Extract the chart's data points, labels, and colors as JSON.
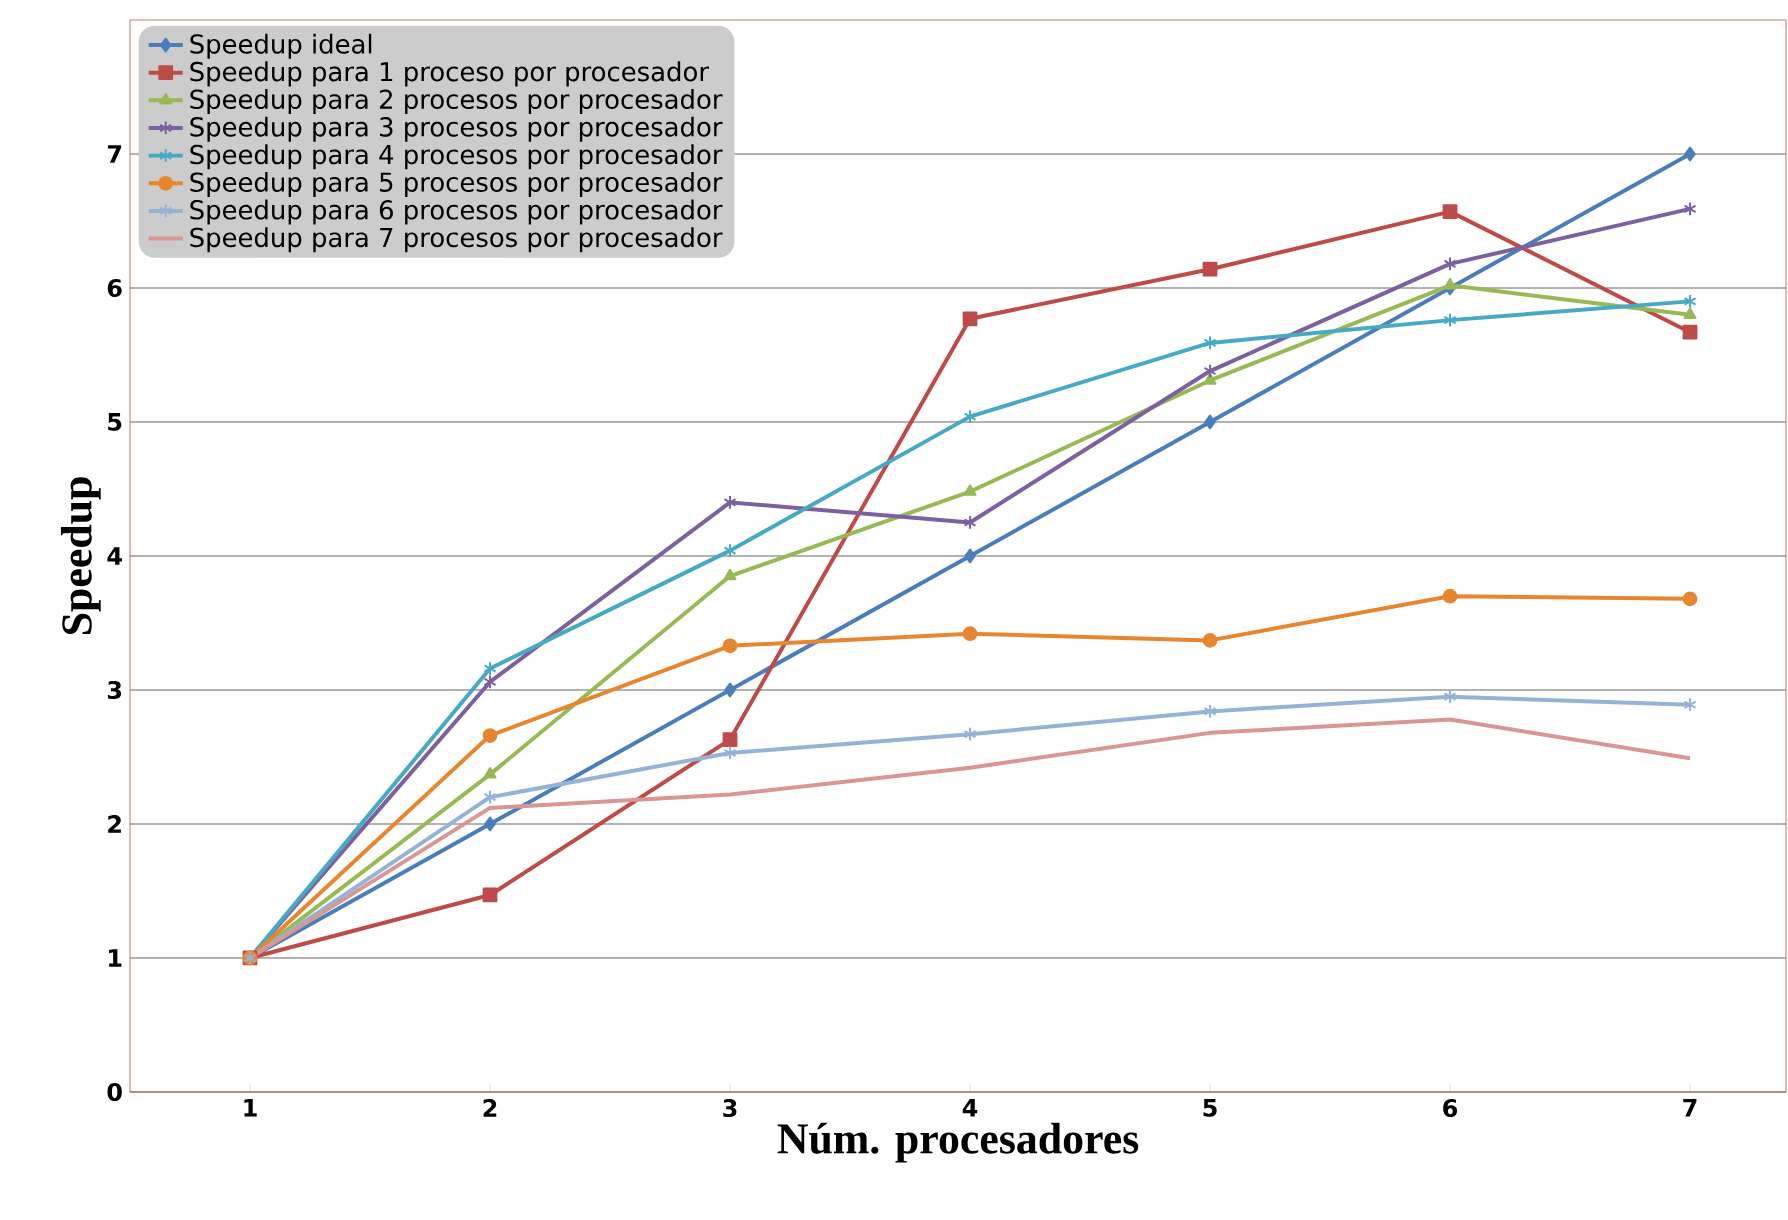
{
  "chart_data": {
    "type": "line",
    "xlabel": "Núm. procesadores",
    "ylabel": "Speedup",
    "x": [
      1,
      2,
      3,
      4,
      5,
      6,
      7
    ],
    "xlim": [
      0.5,
      7.4
    ],
    "xticks": [
      1,
      2,
      3,
      4,
      5,
      6,
      7
    ],
    "ylim": [
      0,
      8
    ],
    "yticks": [
      0,
      1,
      2,
      3,
      4,
      5,
      6,
      7
    ],
    "grid": "y",
    "legend": "top left",
    "series": [
      {
        "name": "Speedup ideal",
        "color": "#4a7ebb",
        "marker": "diamond",
        "values": [
          1,
          2.0,
          3.0,
          4.0,
          5.0,
          6.0,
          7.0
        ]
      },
      {
        "name": "Speedup para 1 proceso por procesador",
        "color": "#be4b48",
        "marker": "square",
        "values": [
          1,
          1.47,
          2.63,
          5.77,
          6.14,
          6.57,
          5.67
        ]
      },
      {
        "name": "Speedup para 2 procesos por procesador",
        "color": "#98b954",
        "marker": "triangle",
        "values": [
          1,
          2.37,
          3.85,
          4.48,
          5.31,
          6.02,
          5.8
        ]
      },
      {
        "name": "Speedup para 3 procesos por procesador",
        "color": "#7d60a0",
        "marker": "cross",
        "values": [
          1,
          3.06,
          4.4,
          4.25,
          5.38,
          6.18,
          6.59
        ]
      },
      {
        "name": "Speedup para 4 procesos por procesador",
        "color": "#46aac5",
        "marker": "cross",
        "values": [
          1,
          3.16,
          4.04,
          5.04,
          5.59,
          5.76,
          5.9
        ]
      },
      {
        "name": "Speedup para 5 procesos por procesador",
        "color": "#e8862f",
        "marker": "circle",
        "values": [
          1,
          2.66,
          3.33,
          3.42,
          3.37,
          3.7,
          3.68
        ]
      },
      {
        "name": "Speedup para 6 procesos por procesador",
        "color": "#95b3d7",
        "marker": "cross",
        "values": [
          1,
          2.2,
          2.53,
          2.67,
          2.84,
          2.95,
          2.89
        ]
      },
      {
        "name": "Speedup para 7 procesos por procesador",
        "color": "#d99694",
        "marker": "none",
        "values": [
          1,
          2.12,
          2.22,
          2.42,
          2.68,
          2.78,
          2.49
        ]
      }
    ]
  }
}
